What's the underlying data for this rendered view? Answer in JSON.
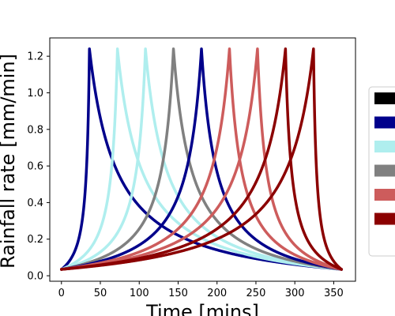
{
  "chart_data": {
    "type": "line",
    "title": "",
    "xlabel": "Time [mins]",
    "ylabel": "Rainfall rate [mm/min]",
    "xlim": [
      -15,
      378
    ],
    "ylim": [
      -0.03,
      1.3
    ],
    "xticks": [
      0,
      50,
      100,
      150,
      200,
      250,
      300,
      350
    ],
    "yticks": [
      0.0,
      0.2,
      0.4,
      0.6,
      0.8,
      1.0,
      1.2
    ],
    "ytick_labels": [
      "0.0",
      "0.2",
      "0.4",
      "0.6",
      "0.8",
      "1.0",
      "1.2"
    ],
    "duration_mins": 360,
    "base_rate": 0.035,
    "peak_rate": 1.24,
    "legend": {
      "placement": "right, partially cut off"
    },
    "series": [
      {
        "peak_time": 36,
        "color": "#00008B"
      },
      {
        "peak_time": 72,
        "color": "#AFEEEE"
      },
      {
        "peak_time": 108,
        "color": "#AFEEEE"
      },
      {
        "peak_time": 144,
        "color": "#808080"
      },
      {
        "peak_time": 180,
        "color": "#00008B"
      },
      {
        "peak_time": 216,
        "color": "#CD5C5C"
      },
      {
        "peak_time": 252,
        "color": "#CD5C5C"
      },
      {
        "peak_time": 288,
        "color": "#8B0000"
      },
      {
        "peak_time": 324,
        "color": "#8B0000"
      }
    ],
    "legend_swatches": [
      "#000000",
      "#00008B",
      "#AFEEEE",
      "#808080",
      "#CD5C5C",
      "#8B0000"
    ]
  }
}
